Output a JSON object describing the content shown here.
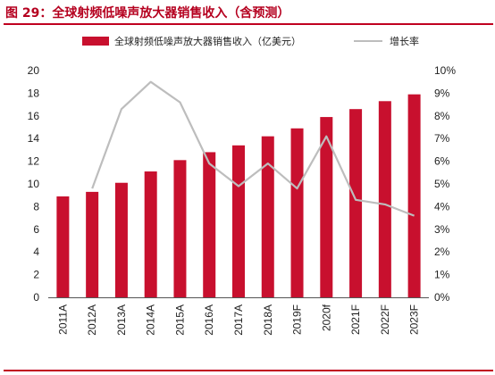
{
  "header": {
    "title": "图 29：全球射频低噪声放大器销售收入（含预测）"
  },
  "colors": {
    "bar": "#c8102e",
    "line": "#bdbdbd",
    "accent": "#c0001f"
  },
  "chart_data": {
    "type": "bar",
    "categories": [
      "2011A",
      "2012A",
      "2013A",
      "2014A",
      "2015A",
      "2016A",
      "2017A",
      "2018A",
      "2019F",
      "2020f",
      "2021F",
      "2022F",
      "2023F"
    ],
    "series": [
      {
        "name": "全球射频低噪声放大器销售收入（亿美元）",
        "type": "bar",
        "axis": "left",
        "values": [
          8.9,
          9.3,
          10.1,
          11.1,
          12.1,
          12.8,
          13.4,
          14.2,
          14.9,
          15.9,
          16.6,
          17.3,
          17.9
        ]
      },
      {
        "name": "增长率",
        "type": "line",
        "axis": "right",
        "values": [
          null,
          4.8,
          8.3,
          9.5,
          8.6,
          5.9,
          4.9,
          5.9,
          4.8,
          7.1,
          4.3,
          4.1,
          3.6
        ]
      }
    ],
    "yleft": {
      "min": 0,
      "max": 20,
      "step": 2,
      "ticks": [
        "0",
        "2",
        "4",
        "6",
        "8",
        "10",
        "12",
        "14",
        "16",
        "18",
        "20"
      ]
    },
    "yright": {
      "min": 0,
      "max": 10,
      "step": 1,
      "ticks": [
        "0%",
        "1%",
        "2%",
        "3%",
        "4%",
        "5%",
        "6%",
        "7%",
        "8%",
        "9%",
        "10%"
      ]
    },
    "grid": false,
    "legend": "top"
  }
}
